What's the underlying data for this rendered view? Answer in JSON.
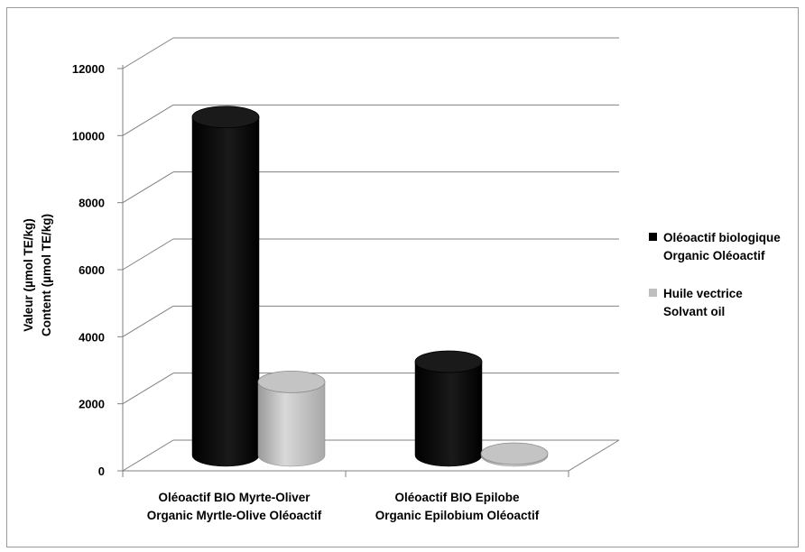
{
  "chart_data": {
    "type": "bar",
    "title": "",
    "xlabel": "",
    "ylabel_lines": [
      "Valeur (µmol TE/kg)",
      "Content (µmol TE/kg)"
    ],
    "ylim": [
      0,
      12000
    ],
    "yticks": [
      0,
      2000,
      4000,
      6000,
      8000,
      10000,
      12000
    ],
    "grid": true,
    "legend_position": "right",
    "categories": [
      {
        "lines": [
          "Oléoactif BIO Myrte-Oliver",
          "Organic Myrtle-Olive Oléoactif"
        ]
      },
      {
        "lines": [
          "Oléoactif BIO Epilobe",
          "Organic Epilobium Oléoactif"
        ]
      }
    ],
    "series": [
      {
        "name_lines": [
          "Oléoactif biologique",
          "Organic Oléoactif"
        ],
        "values": [
          11200,
          3900
        ],
        "color": "#000000"
      },
      {
        "name_lines": [
          "Huile vectrice",
          "Solvant oil"
        ],
        "values": [
          3300,
          200
        ],
        "color": "#bfbfbf"
      }
    ]
  }
}
